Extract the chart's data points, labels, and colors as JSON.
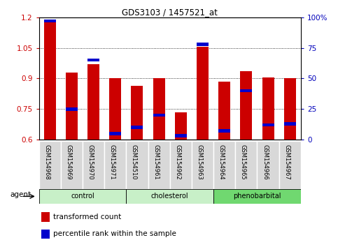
{
  "title": "GDS3103 / 1457521_at",
  "samples": [
    "GSM154968",
    "GSM154969",
    "GSM154970",
    "GSM154971",
    "GSM154510",
    "GSM154961",
    "GSM154962",
    "GSM154963",
    "GSM154964",
    "GSM154965",
    "GSM154966",
    "GSM154967"
  ],
  "red_values": [
    1.19,
    0.93,
    0.97,
    0.9,
    0.865,
    0.9,
    0.735,
    1.055,
    0.885,
    0.935,
    0.905,
    0.9
  ],
  "blue_pct": [
    97,
    25,
    65,
    5,
    10,
    20,
    3,
    78,
    7,
    40,
    12,
    13
  ],
  "ylim_left": [
    0.6,
    1.2
  ],
  "ylim_right": [
    0,
    100
  ],
  "yticks_left": [
    0.6,
    0.75,
    0.9,
    1.05,
    1.2
  ],
  "ytick_labels_left": [
    "0.6",
    "0.75",
    "0.9",
    "1.05",
    "1.2"
  ],
  "yticks_right": [
    0,
    25,
    50,
    75,
    100
  ],
  "ytick_labels_right": [
    "0",
    "25",
    "50",
    "75",
    "100%"
  ],
  "groups": [
    {
      "label": "control",
      "start": 0,
      "end": 3,
      "color": "#c8f0c8"
    },
    {
      "label": "cholesterol",
      "start": 4,
      "end": 7,
      "color": "#c8f0c8"
    },
    {
      "label": "phenobarbital",
      "start": 8,
      "end": 11,
      "color": "#70d870"
    }
  ],
  "bar_width": 0.55,
  "bar_color": "#cc0000",
  "dot_color": "#0000cc",
  "ylabel_left_color": "#cc0000",
  "ylabel_right_color": "#0000bb",
  "legend_red_label": "transformed count",
  "legend_blue_label": "percentile rank within the sample",
  "agent_label": "agent",
  "tick_fontsize": 7.5,
  "sample_fontsize": 6.0
}
